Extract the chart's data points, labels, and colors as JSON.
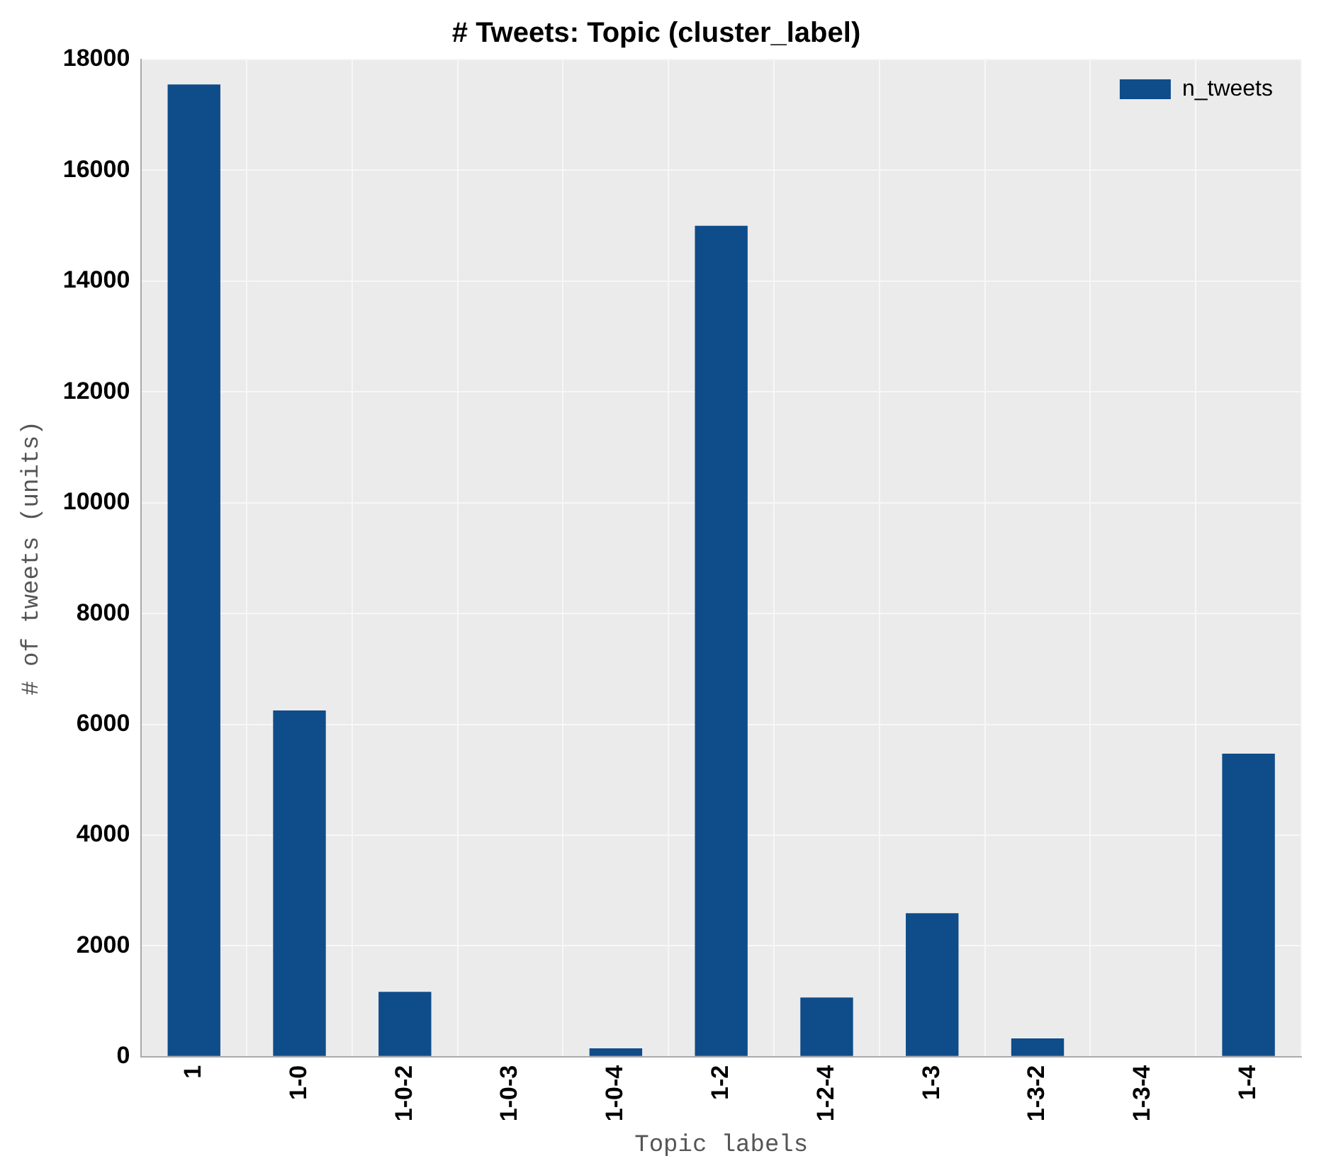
{
  "chart_data": {
    "type": "bar",
    "title": "# Tweets: Topic (cluster_label)",
    "xlabel": "Topic labels",
    "ylabel": "# of tweets (units)",
    "categories": [
      "1",
      "1-0",
      "1-0-2",
      "1-0-3",
      "1-0-4",
      "1-2",
      "1-2-4",
      "1-3",
      "1-3-2",
      "1-3-4",
      "1-4"
    ],
    "series": [
      {
        "name": "n_tweets",
        "color": "#0f4c8a",
        "values": [
          17550,
          6250,
          1170,
          0,
          150,
          15000,
          1070,
          2590,
          330,
          0,
          5470
        ]
      }
    ],
    "ylim": [
      0,
      18000
    ],
    "yticks": [
      0,
      2000,
      4000,
      6000,
      8000,
      10000,
      12000,
      14000,
      16000,
      18000
    ],
    "grid": true,
    "legend": "top right"
  }
}
